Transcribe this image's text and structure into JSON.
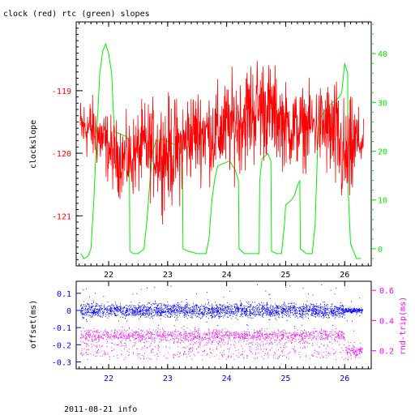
{
  "title": "clock (red) rtc (green) slopes",
  "footer": "2011-08-21 info",
  "colors": {
    "clock": "#ff0000",
    "rtc": "#00ee00",
    "offset": "#0000ff",
    "rndtrip": "#ff00ff",
    "frame": "#000000"
  },
  "chart_data": [
    {
      "type": "line",
      "title": "clock (red) rtc (green) slopes",
      "xlim": [
        21.45,
        26.45
      ],
      "x_ticks": [
        22,
        23,
        24,
        25,
        26
      ],
      "ylabel": "clockslope",
      "ylim": [
        -121.8,
        -117.9
      ],
      "y_ticks": [
        -119,
        -120,
        -121
      ],
      "y2lim": [
        -3.5,
        46.5
      ],
      "y2_ticks": [
        0,
        10,
        20,
        30,
        40
      ],
      "series": [
        {
          "name": "clock",
          "color": "#ff0000",
          "axis": "left",
          "keyframes": [
            [
              21.52,
              -119.6
            ],
            [
              21.7,
              -119.6
            ],
            [
              21.9,
              -119.8
            ],
            [
              22.1,
              -120.05
            ],
            [
              22.35,
              -120.1
            ],
            [
              22.6,
              -119.9
            ],
            [
              22.8,
              -119.95
            ],
            [
              23.0,
              -120.0
            ],
            [
              23.2,
              -119.95
            ],
            [
              23.4,
              -119.7
            ],
            [
              23.6,
              -119.65
            ],
            [
              23.8,
              -119.7
            ],
            [
              24.0,
              -119.6
            ],
            [
              24.2,
              -119.5
            ],
            [
              24.4,
              -119.35
            ],
            [
              24.6,
              -119.25
            ],
            [
              24.75,
              -119.35
            ],
            [
              24.9,
              -119.45
            ],
            [
              25.05,
              -119.6
            ],
            [
              25.25,
              -119.6
            ],
            [
              25.45,
              -119.55
            ],
            [
              25.7,
              -119.6
            ],
            [
              25.9,
              -119.85
            ],
            [
              26.0,
              -120.15
            ],
            [
              26.1,
              -120.05
            ],
            [
              26.2,
              -119.8
            ],
            [
              26.32,
              -119.85
            ]
          ],
          "noise_amplitude": [
            [
              21.52,
              0.45
            ],
            [
              22.0,
              0.5
            ],
            [
              22.5,
              0.6
            ],
            [
              23.0,
              0.8
            ],
            [
              23.5,
              0.65
            ],
            [
              24.0,
              0.7
            ],
            [
              24.5,
              0.8
            ],
            [
              25.0,
              0.6
            ],
            [
              25.5,
              0.55
            ],
            [
              25.9,
              0.9
            ],
            [
              26.1,
              0.8
            ],
            [
              26.32,
              0.3
            ]
          ]
        },
        {
          "name": "rtc",
          "color": "#00ee00",
          "axis": "right",
          "points": [
            [
              21.53,
              -1
            ],
            [
              21.58,
              -2
            ],
            [
              21.65,
              -1.5
            ],
            [
              21.7,
              0
            ],
            [
              21.75,
              10
            ],
            [
              21.8,
              24
            ],
            [
              21.85,
              36
            ],
            [
              21.9,
              40.5
            ],
            [
              21.95,
              42
            ],
            [
              22.0,
              40
            ],
            [
              22.05,
              36
            ],
            [
              22.08,
              28
            ],
            [
              22.1,
              24
            ],
            [
              22.2,
              23.5
            ],
            [
              22.3,
              23
            ],
            [
              22.35,
              22
            ],
            [
              22.36,
              -0.5
            ],
            [
              22.42,
              -1
            ],
            [
              22.5,
              -1
            ],
            [
              22.6,
              0
            ],
            [
              22.65,
              6
            ],
            [
              22.7,
              14
            ],
            [
              22.75,
              20
            ],
            [
              22.8,
              22
            ],
            [
              22.9,
              22.5
            ],
            [
              23.0,
              22
            ],
            [
              23.1,
              21.5
            ],
            [
              23.2,
              20.5
            ],
            [
              23.25,
              19
            ],
            [
              23.26,
              0
            ],
            [
              23.35,
              -0.5
            ],
            [
              23.5,
              -1
            ],
            [
              23.65,
              -1
            ],
            [
              23.7,
              2
            ],
            [
              23.75,
              10
            ],
            [
              23.8,
              14.5
            ],
            [
              23.85,
              17
            ],
            [
              23.95,
              17.5
            ],
            [
              24.05,
              18
            ],
            [
              24.15,
              16
            ],
            [
              24.2,
              14
            ],
            [
              24.21,
              0
            ],
            [
              24.3,
              -1
            ],
            [
              24.45,
              -1
            ],
            [
              24.55,
              -1
            ],
            [
              24.56,
              14
            ],
            [
              24.6,
              18.5
            ],
            [
              24.7,
              19.5
            ],
            [
              24.75,
              18
            ],
            [
              24.76,
              -0.5
            ],
            [
              24.85,
              -1
            ],
            [
              24.93,
              -1
            ],
            [
              24.98,
              5
            ],
            [
              25.0,
              9
            ],
            [
              25.05,
              9.5
            ],
            [
              25.1,
              10
            ],
            [
              25.15,
              11
            ],
            [
              25.2,
              13
            ],
            [
              25.24,
              14
            ],
            [
              25.25,
              0
            ],
            [
              25.35,
              -1
            ],
            [
              25.45,
              -1
            ],
            [
              25.5,
              5
            ],
            [
              25.55,
              24
            ],
            [
              25.6,
              27
            ],
            [
              25.7,
              29
            ],
            [
              25.8,
              30
            ],
            [
              25.9,
              31
            ],
            [
              25.95,
              32
            ],
            [
              26.0,
              38
            ],
            [
              26.05,
              36
            ],
            [
              26.06,
              12
            ],
            [
              26.1,
              1
            ],
            [
              26.2,
              -2
            ],
            [
              26.28,
              -2
            ]
          ]
        }
      ]
    },
    {
      "type": "scatter",
      "xlim": [
        21.45,
        26.45
      ],
      "x_ticks": [
        22,
        23,
        24,
        25,
        26
      ],
      "ylabel": "offset(ms)",
      "ylim": [
        -0.34,
        0.17
      ],
      "y_ticks": [
        0.1,
        0,
        -0.1,
        -0.2,
        -0.3
      ],
      "y2label": "rnd-trip(ms)",
      "y2lim": [
        0.08,
        0.66
      ],
      "y2_ticks": [
        0.6,
        0.4,
        0.2
      ],
      "series": [
        {
          "name": "offset",
          "color": "#0000ff",
          "axis": "left",
          "center": 0.0,
          "spread": 0.06
        },
        {
          "name": "rnd-trip",
          "color": "#ff00ff",
          "axis": "right",
          "center": 0.3,
          "spread": 0.06
        }
      ]
    }
  ]
}
